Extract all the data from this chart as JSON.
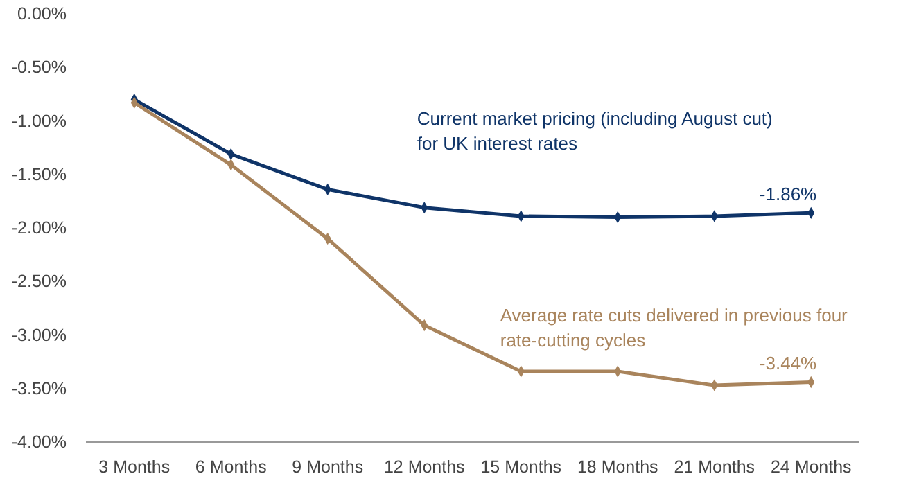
{
  "chart_data": {
    "type": "line",
    "categories": [
      "3 Months",
      "6 Months",
      "9 Months",
      "12 Months",
      "15 Months",
      "18 Months",
      "21 Months",
      "24 Months"
    ],
    "series": [
      {
        "name": "Current market pricing (including August cut) for UK interest rates",
        "color": "#0f3468",
        "values": [
          -0.8,
          -1.31,
          -1.64,
          -1.81,
          -1.89,
          -1.9,
          -1.89,
          -1.86
        ],
        "value_labels": [
          null,
          null,
          null,
          null,
          null,
          null,
          null,
          "-1.86%"
        ]
      },
      {
        "name": "Average rate cuts delivered in previous four rate-cutting cycles",
        "color": "#a9845c",
        "values": [
          -0.83,
          -1.41,
          -2.1,
          -2.91,
          -3.34,
          -3.34,
          -3.47,
          -3.44
        ],
        "value_labels": [
          null,
          null,
          null,
          null,
          null,
          null,
          null,
          "-3.44%"
        ]
      }
    ],
    "ylim": [
      -4,
      0
    ],
    "yticks": [
      {
        "value": 0,
        "label": "0.00%"
      },
      {
        "value": -0.5,
        "label": "-0.50%"
      },
      {
        "value": -1,
        "label": "-1.00%"
      },
      {
        "value": -1.5,
        "label": "-1.50%"
      },
      {
        "value": -2,
        "label": "-2.00%"
      },
      {
        "value": -2.5,
        "label": "-2.50%"
      },
      {
        "value": -3,
        "label": "-3.00%"
      },
      {
        "value": -3.5,
        "label": "-3.50%"
      },
      {
        "value": -4,
        "label": "-4.00%"
      }
    ],
    "grid": false,
    "marker": "diamond",
    "line_style": "solid"
  }
}
